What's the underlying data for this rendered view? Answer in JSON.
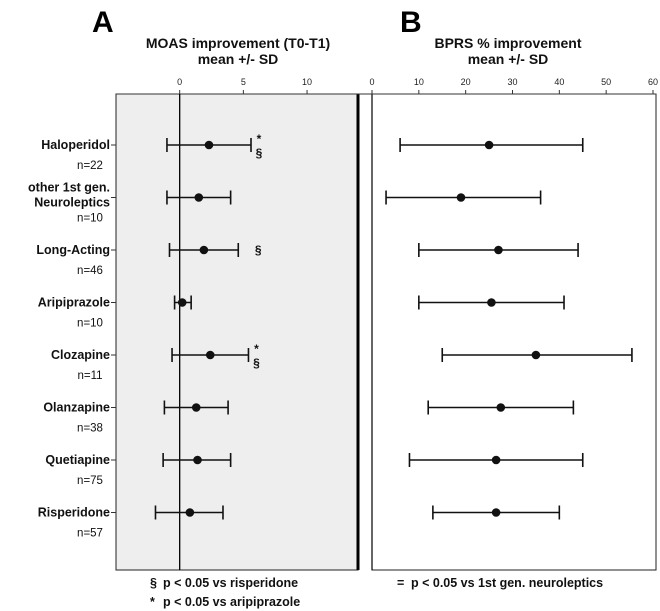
{
  "chart_data": [
    {
      "type": "scatter",
      "panel_label": "A",
      "title": "MOAS improvement (T0-T1)",
      "subtitle": "mean +/- SD",
      "xlim": [
        -5,
        14
      ],
      "xticks": [
        0,
        5,
        10
      ],
      "grid": false,
      "categories": [
        "Haloperidol",
        "other 1st gen. Neuroleptics",
        "Long-Acting",
        "Aripiprazole",
        "Clozapine",
        "Olanzapine",
        "Quetiapine",
        "Risperidone"
      ],
      "n_labels": [
        "n=22",
        "n=10",
        "n=46",
        "n=10",
        "n=11",
        "n=38",
        "n=75",
        "n=57"
      ],
      "mean": [
        2.3,
        1.5,
        1.9,
        0.2,
        2.4,
        1.3,
        1.4,
        0.8
      ],
      "lower": [
        -1.0,
        -1.0,
        -0.8,
        -0.4,
        -0.6,
        -1.2,
        -1.3,
        -1.9
      ],
      "upper": [
        5.6,
        4.0,
        4.6,
        0.9,
        5.4,
        3.8,
        4.0,
        3.4
      ],
      "markers": [
        "* §",
        "",
        "§",
        "",
        "* §",
        "",
        "",
        ""
      ]
    },
    {
      "type": "scatter",
      "panel_label": "B",
      "title": "BPRS % improvement",
      "subtitle": "mean +/- SD",
      "xlim": [
        0,
        60
      ],
      "xticks": [
        0,
        10,
        20,
        30,
        40,
        50,
        60
      ],
      "grid": false,
      "categories": [
        "Haloperidol",
        "other 1st gen. Neuroleptics",
        "Long-Acting",
        "Aripiprazole",
        "Clozapine",
        "Olanzapine",
        "Quetiapine",
        "Risperidone"
      ],
      "mean": [
        25,
        19,
        27,
        25.5,
        35,
        27.5,
        26.5,
        26.5
      ],
      "lower": [
        6,
        3,
        10,
        10,
        15,
        12,
        8,
        13
      ],
      "upper": [
        45,
        36,
        44,
        41,
        55.5,
        43,
        45,
        40
      ],
      "markers": [
        "",
        "",
        "",
        "",
        "=",
        "",
        "",
        ""
      ]
    }
  ],
  "footnotes": {
    "s1_symbol": "§",
    "s1_text": "p < 0.05 vs risperidone",
    "s2_symbol": "*",
    "s2_text": "p < 0.05 vs aripiprazole",
    "s3_symbol": "=",
    "s3_text": "p < 0.05 vs 1st gen. neuroleptics"
  },
  "colors": {
    "plot_background": "#eeeeee",
    "ink": "#111111",
    "page": "#ffffff"
  }
}
